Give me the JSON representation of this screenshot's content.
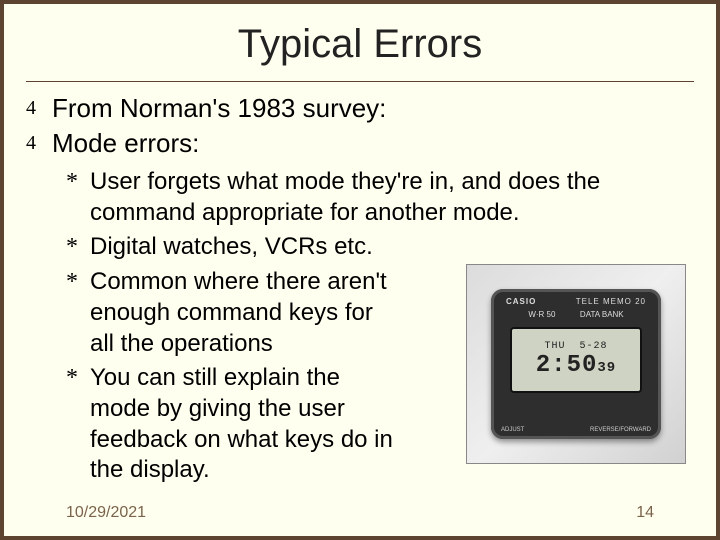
{
  "colors": {
    "slide_bg": "#fffff0",
    "border": "#5c4430",
    "text": "#222222",
    "footer_text": "#7a634a",
    "watch_bg": "#dcdcdc",
    "watch_body": "#2e2e2e",
    "watch_screen": "#cfd3c4"
  },
  "typography": {
    "font_family": "Comic Sans MS",
    "title_size_pt": 40,
    "main_size_pt": 26,
    "sub_size_pt": 24,
    "footer_size_pt": 16
  },
  "title": "Typical Errors",
  "main_bullets": [
    "From Norman's 1983 survey:",
    "Mode errors:"
  ],
  "sub_bullets": [
    "User forgets what mode they're in, and does the command appropriate for another mode.",
    "Digital watches, VCRs etc.",
    "Common where there aren't enough command keys for all the operations",
    "You can still explain the mode by giving the user feedback on what keys do in the display."
  ],
  "watch": {
    "brand": "CASIO",
    "tagline": "TELE MEMO 20",
    "sub": "DATA BANK",
    "model": "W·R 50",
    "day": "THU",
    "date": "5-28",
    "time": "2:50",
    "seconds": "39",
    "label_left": "ADJUST",
    "label_right": "REVERSE/FORWARD"
  },
  "footer": {
    "date": "10/29/2021",
    "page": "14"
  }
}
